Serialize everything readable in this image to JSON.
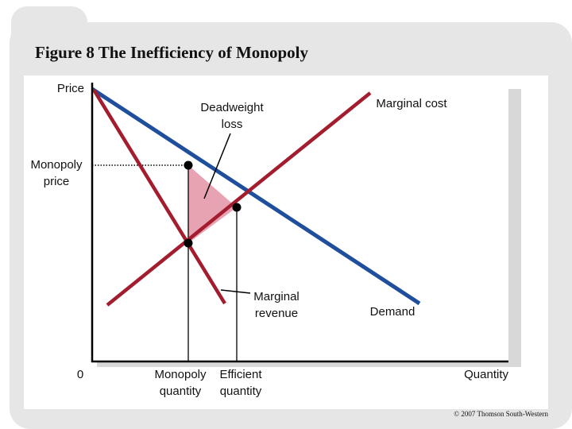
{
  "title": "Figure 8 The Inefficiency of Monopoly",
  "labels": {
    "price": "Price",
    "deadweight_loss": [
      "Deadweight",
      "loss"
    ],
    "marginal_cost": "Marginal cost",
    "monopoly_price": [
      "Monopoly",
      "price"
    ],
    "marginal_revenue": [
      "Marginal",
      "revenue"
    ],
    "demand": "Demand",
    "origin": "0",
    "monopoly_quantity": [
      "Monopoly",
      "quantity"
    ],
    "efficient_quantity": [
      "Efficient",
      "quantity"
    ],
    "quantity": "Quantity"
  },
  "copyright": "© 2007 Thomson South-Western"
}
